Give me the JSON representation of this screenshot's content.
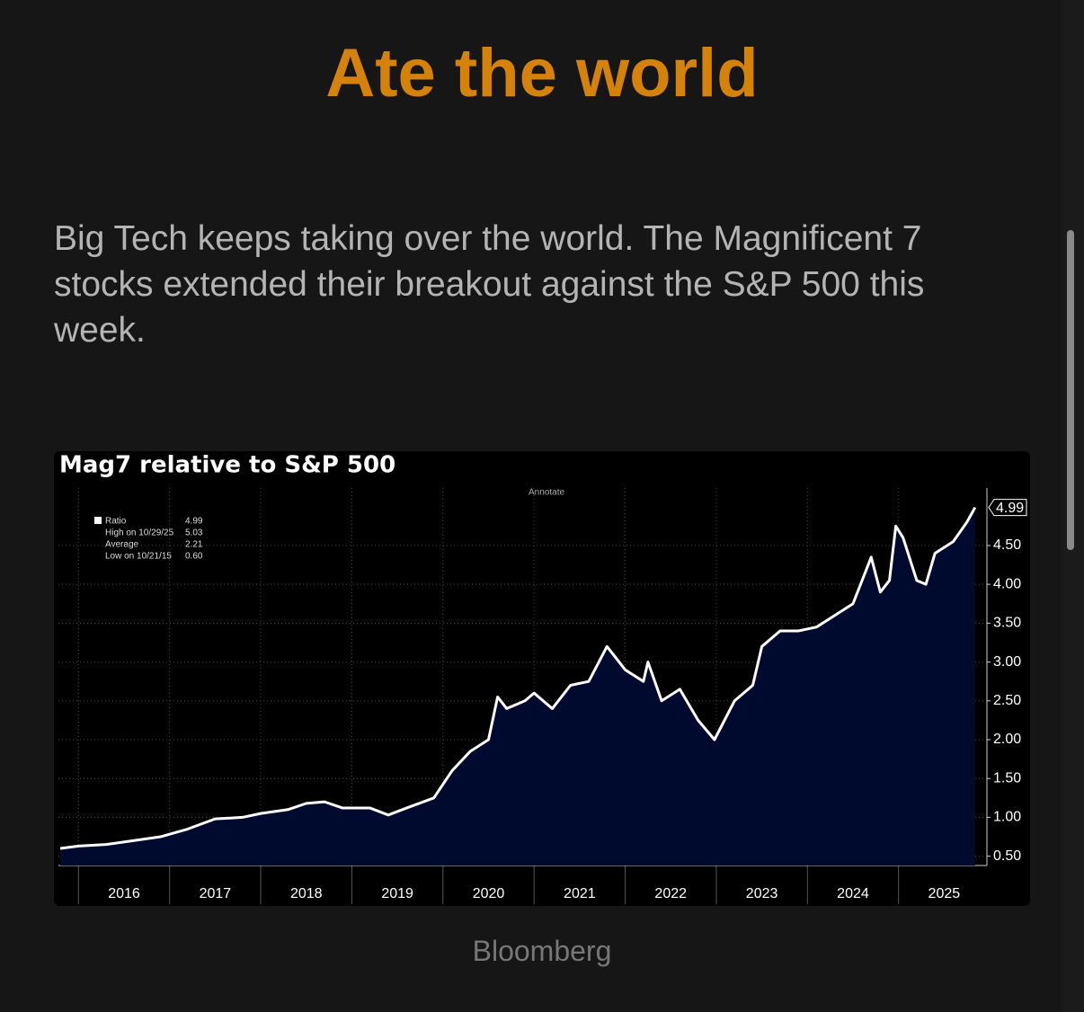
{
  "title": "Ate the world",
  "paragraph": "Big Tech keeps taking over the world. The Magnificent 7 stocks extended their breakout against the S&P 500 this week.",
  "source": "Bloomberg",
  "chart_data": {
    "type": "line",
    "title": "Mag7 relative to S&P 500",
    "annotate": "Annotate",
    "legend": [
      {
        "label": "Ratio",
        "value": "4.99"
      },
      {
        "label": "High on 10/29/25",
        "value": "5.03"
      },
      {
        "label": "Average",
        "value": "2.21"
      },
      {
        "label": "Low on 10/21/15",
        "value": "0.60"
      }
    ],
    "xticks": [
      {
        "value": 2016,
        "label": "2016"
      },
      {
        "value": 2017,
        "label": "2017"
      },
      {
        "value": 2018,
        "label": "2018"
      },
      {
        "value": 2019,
        "label": "2019"
      },
      {
        "value": 2020,
        "label": "2020"
      },
      {
        "value": 2021,
        "label": "2021"
      },
      {
        "value": 2022,
        "label": "2022"
      },
      {
        "value": 2023,
        "label": "2023"
      },
      {
        "value": 2024,
        "label": "2024"
      },
      {
        "value": 2025,
        "label": "2025"
      }
    ],
    "xlim": [
      2015.78,
      2025.97
    ],
    "ylim": [
      0.38,
      5.24
    ],
    "yticks": [
      {
        "value": 0.5,
        "label": "0.50"
      },
      {
        "value": 1,
        "label": "1.00"
      },
      {
        "value": 1.5,
        "label": "1.50"
      },
      {
        "value": 2,
        "label": "2.00"
      },
      {
        "value": 2.5,
        "label": "2.50"
      },
      {
        "value": 3,
        "label": "3.00"
      },
      {
        "value": 3.5,
        "label": "3.50"
      },
      {
        "value": 4,
        "label": "4.00"
      },
      {
        "value": 4.5,
        "label": "4.50"
      }
    ],
    "grid": true,
    "series": [
      {
        "name": "Ratio",
        "color": "#ffffff",
        "fill": "#000a2e",
        "x": [
          2015.8,
          2016.0,
          2016.3,
          2016.6,
          2016.9,
          2017.2,
          2017.5,
          2017.8,
          2018.0,
          2018.3,
          2018.5,
          2018.7,
          2018.9,
          2019.2,
          2019.4,
          2019.6,
          2019.9,
          2020.1,
          2020.3,
          2020.5,
          2020.6,
          2020.7,
          2020.9,
          2021.0,
          2021.2,
          2021.4,
          2021.6,
          2021.8,
          2022.0,
          2022.2,
          2022.25,
          2022.4,
          2022.6,
          2022.8,
          2022.98,
          2023.2,
          2023.4,
          2023.5,
          2023.7,
          2023.9,
          2024.1,
          2024.3,
          2024.5,
          2024.7,
          2024.8,
          2024.9,
          2024.97,
          2025.05,
          2025.2,
          2025.3,
          2025.4,
          2025.6,
          2025.75,
          2025.84
        ],
        "values": [
          0.6,
          0.63,
          0.65,
          0.7,
          0.75,
          0.85,
          0.98,
          1.0,
          1.05,
          1.1,
          1.18,
          1.2,
          1.12,
          1.12,
          1.03,
          1.12,
          1.25,
          1.6,
          1.85,
          2.0,
          2.55,
          2.4,
          2.5,
          2.6,
          2.4,
          2.7,
          2.75,
          3.2,
          2.9,
          2.75,
          3.0,
          2.5,
          2.65,
          2.25,
          2.0,
          2.5,
          2.7,
          3.2,
          3.4,
          3.4,
          3.45,
          3.6,
          3.75,
          4.35,
          3.9,
          4.05,
          4.75,
          4.6,
          4.05,
          4.0,
          4.4,
          4.55,
          4.8,
          4.99
        ],
        "value_labels": [
          null,
          null,
          null,
          null,
          null,
          null,
          null,
          null,
          null,
          null,
          null,
          null,
          null,
          null,
          null,
          null,
          null,
          null,
          null,
          null,
          null,
          null,
          null,
          null,
          null,
          null,
          null,
          null,
          null,
          null,
          null,
          null,
          null,
          null,
          null,
          null,
          null,
          null,
          null,
          null,
          null,
          null,
          null,
          null,
          null,
          null,
          null,
          null,
          null,
          null,
          null,
          null,
          null,
          "4.99"
        ]
      }
    ]
  }
}
